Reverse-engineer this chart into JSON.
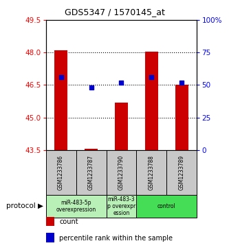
{
  "title": "GDS5347 / 1570145_at",
  "samples": [
    "GSM1233786",
    "GSM1233787",
    "GSM1233790",
    "GSM1233788",
    "GSM1233789"
  ],
  "bar_values": [
    48.1,
    43.56,
    45.7,
    48.05,
    46.5
  ],
  "percentile_values": [
    56,
    48,
    52,
    56,
    52
  ],
  "ylim_left": [
    43.5,
    49.5
  ],
  "ylim_right": [
    0,
    100
  ],
  "yticks_left": [
    43.5,
    45,
    46.5,
    48,
    49.5
  ],
  "yticks_right": [
    0,
    25,
    50,
    75,
    100
  ],
  "bar_color": "#cc0000",
  "dot_color": "#0000cc",
  "bar_bottom": 43.5,
  "grid_yticks": [
    45,
    46.5,
    48
  ],
  "protocol_groups": [
    {
      "label": "miR-483-5p\noverexpression",
      "start": 0,
      "end": 2,
      "color": "#b8f0b8"
    },
    {
      "label": "miR-483-3\np overexpr\nession",
      "start": 2,
      "end": 3,
      "color": "#b8f0b8"
    },
    {
      "label": "control",
      "start": 3,
      "end": 5,
      "color": "#44dd55"
    }
  ],
  "sample_box_color": "#c8c8c8",
  "legend_items": [
    {
      "label": "count",
      "color": "#cc0000"
    },
    {
      "label": "percentile rank within the sample",
      "color": "#0000cc"
    }
  ]
}
